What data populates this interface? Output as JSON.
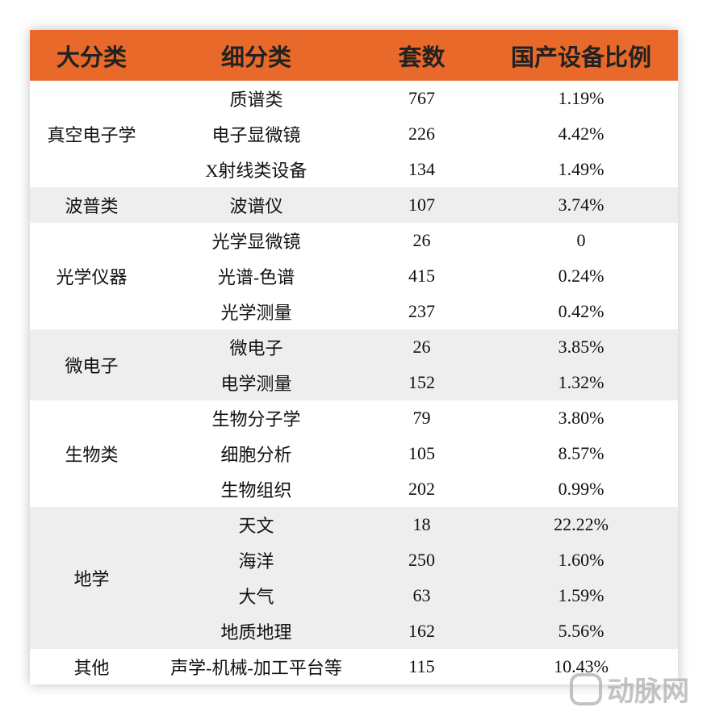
{
  "table": {
    "header": [
      "大分类",
      "细分类",
      "套数",
      "国产设备比例"
    ],
    "groups": [
      {
        "name": "真空电子学",
        "rows": [
          [
            "质谱类",
            767,
            "1.19%"
          ],
          [
            "电子显微镜",
            226,
            "4.42%"
          ],
          [
            "X射线类设备",
            134,
            "1.49%"
          ]
        ]
      },
      {
        "name": "波普类",
        "rows": [
          [
            "波谱仪",
            107,
            "3.74%"
          ]
        ]
      },
      {
        "name": "光学仪器",
        "rows": [
          [
            "光学显微镜",
            26,
            "0"
          ],
          [
            "光谱-色谱",
            415,
            "0.24%"
          ],
          [
            "光学测量",
            237,
            "0.42%"
          ]
        ]
      },
      {
        "name": "微电子",
        "rows": [
          [
            "微电子",
            26,
            "3.85%"
          ],
          [
            "电学测量",
            152,
            "1.32%"
          ]
        ]
      },
      {
        "name": "生物类",
        "rows": [
          [
            "生物分子学",
            79,
            "3.80%"
          ],
          [
            "细胞分析",
            105,
            "8.57%"
          ],
          [
            "生物组织",
            202,
            "0.99%"
          ]
        ]
      },
      {
        "name": "地学",
        "rows": [
          [
            "天文",
            18,
            "22.22%"
          ],
          [
            "海洋",
            250,
            "1.60%"
          ],
          [
            "大气",
            63,
            "1.59%"
          ],
          [
            "地质地理",
            162,
            "5.56%"
          ]
        ]
      },
      {
        "name": "其他",
        "rows": [
          [
            "声学-机械-加工平台等",
            115,
            "10.43%"
          ]
        ]
      }
    ]
  },
  "watermark": "动脉网"
}
